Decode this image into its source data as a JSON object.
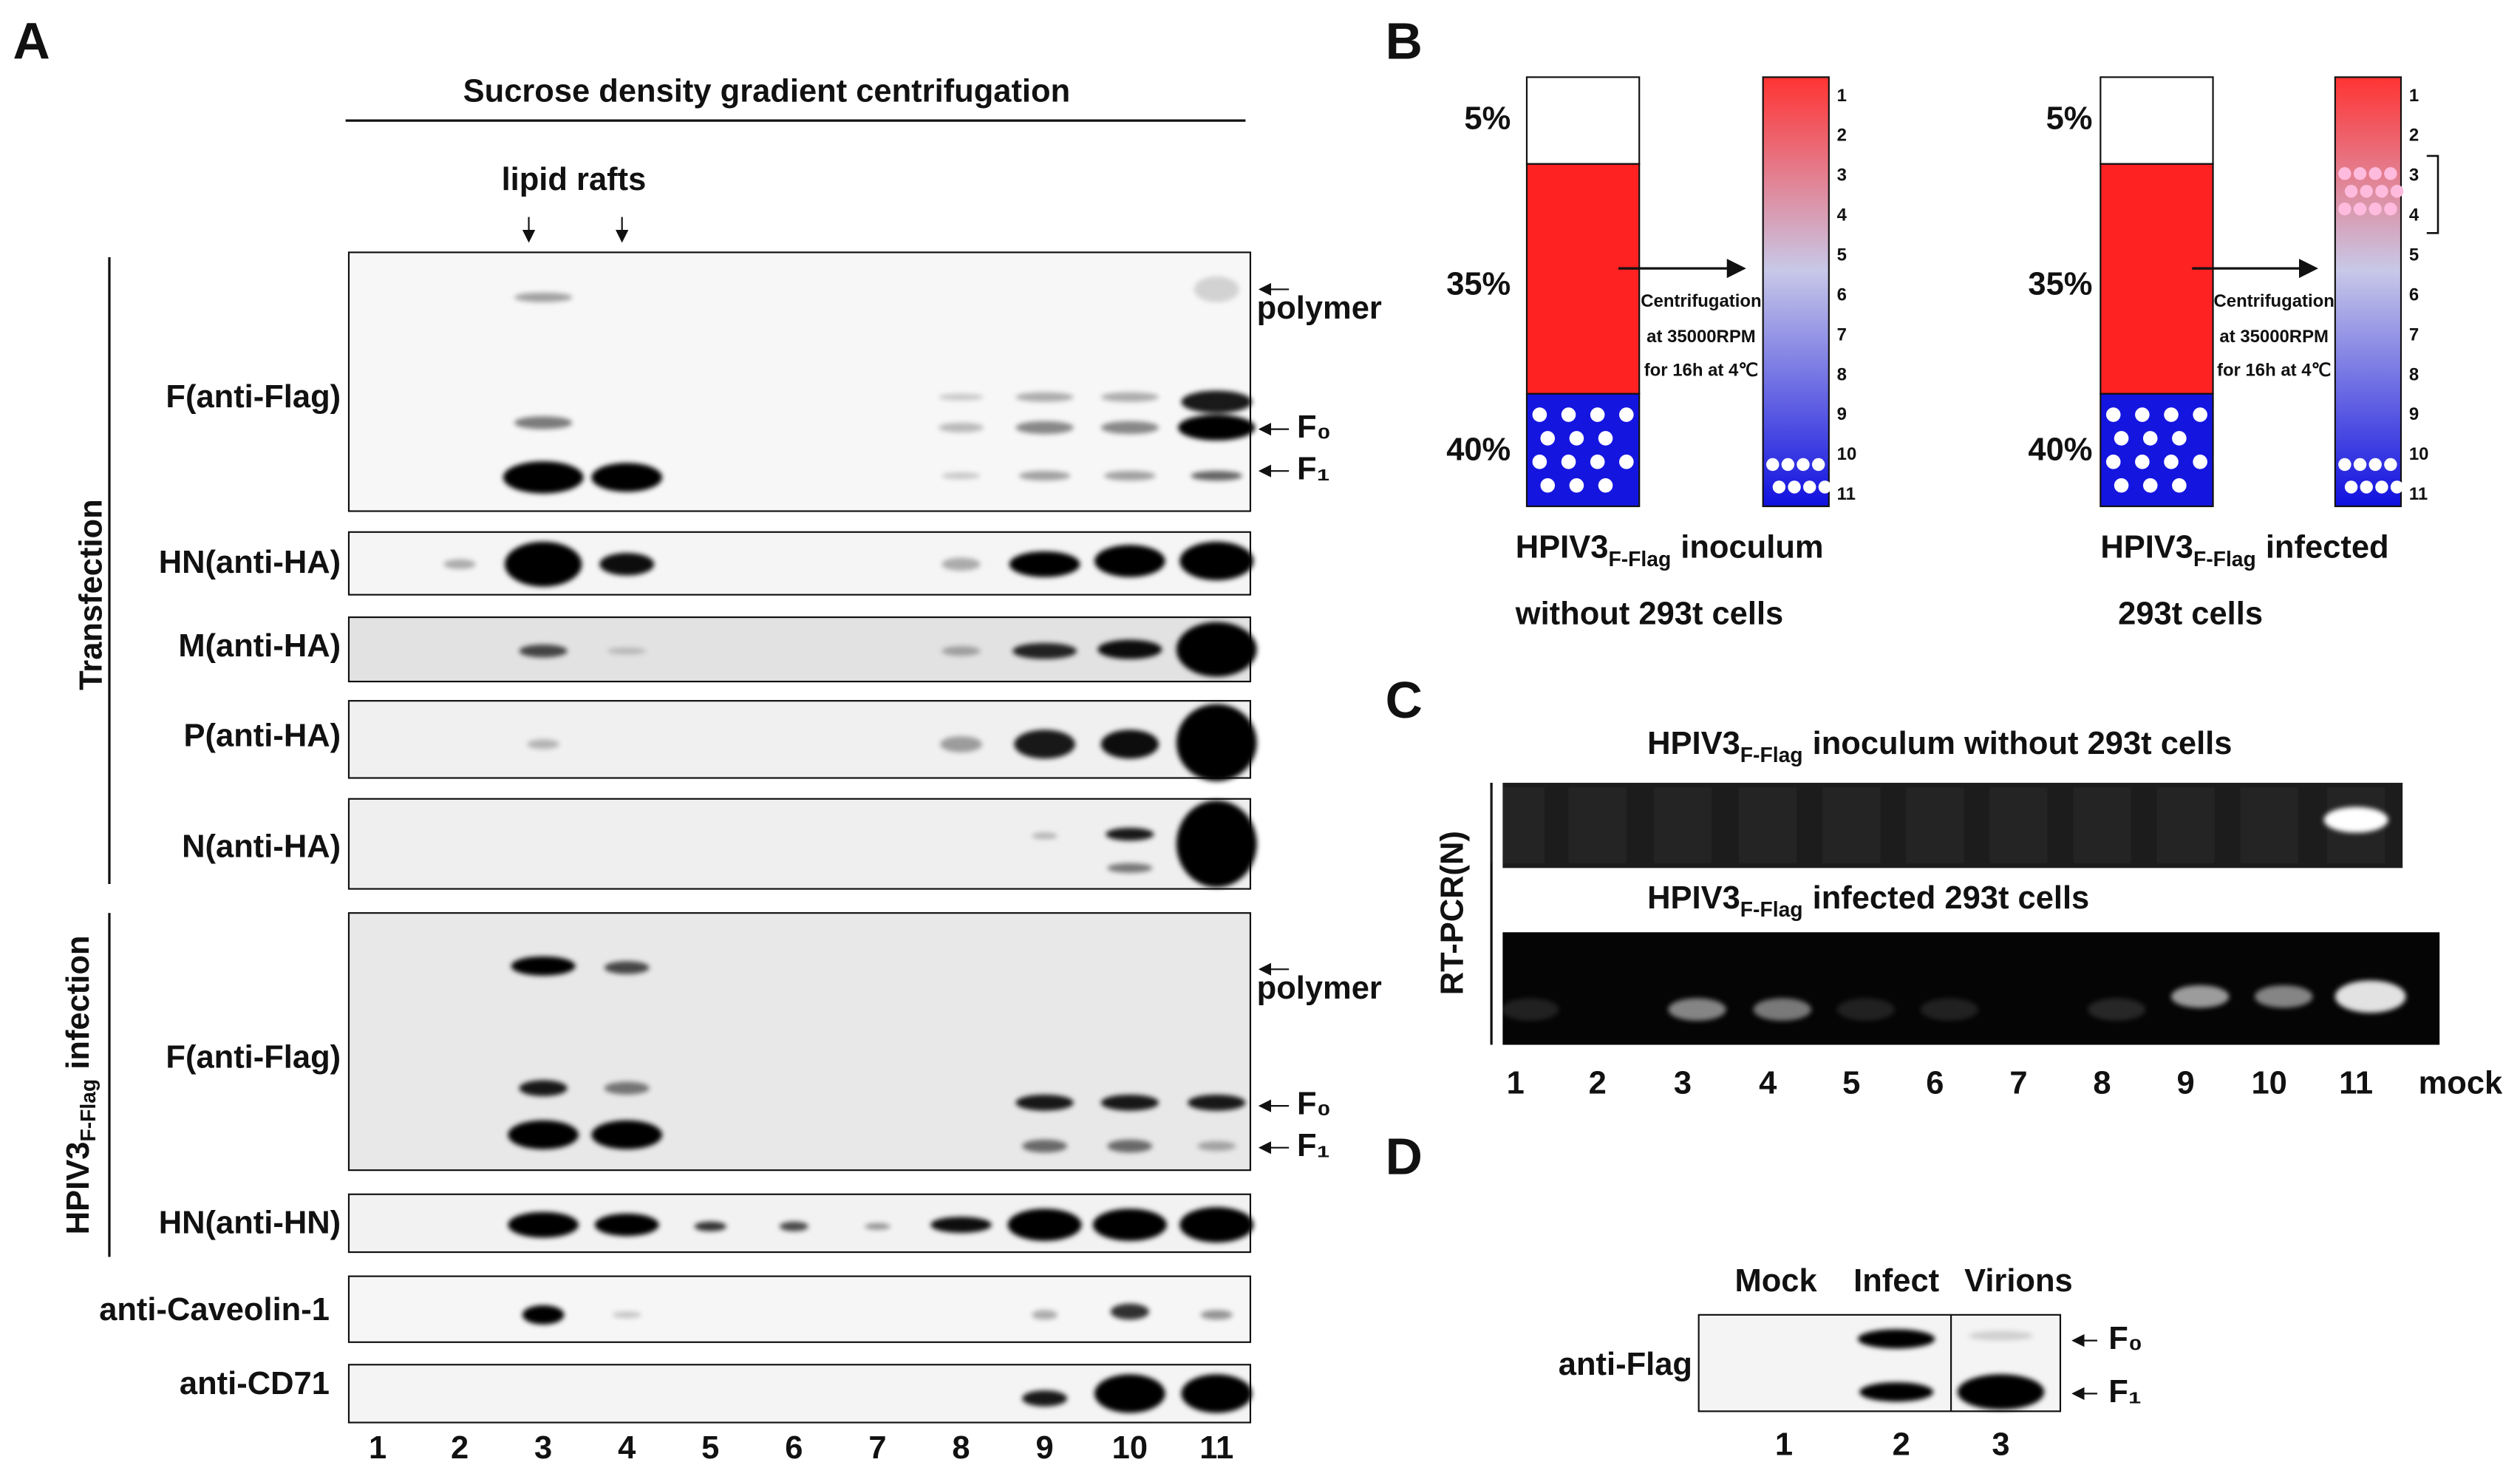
{
  "panel_a": {
    "label": "A",
    "title": "Sucrose density gradient centrifugation",
    "lipid_rafts": "lipid rafts",
    "blots": [
      "F(anti-Flag)",
      "HN(anti-HA)",
      "M(anti-HA)",
      "P(anti-HA)",
      "N(anti-HA)",
      "F(anti-Flag)",
      "HN(anti-HN)",
      "anti-Caveolin-1",
      "anti-CD71"
    ],
    "lanes": [
      "1",
      "2",
      "3",
      "4",
      "5",
      "6",
      "7",
      "8",
      "9",
      "10",
      "11"
    ],
    "transfection": "Transfection",
    "infection": {
      "virus": "HPIV3",
      "subscript": "F-Flag",
      "text": "infection"
    },
    "markers": {
      "polymer": "polymer",
      "f0": "F₀",
      "f1": "F₁"
    }
  },
  "panel_b": {
    "label": "B",
    "percents": [
      "5%",
      "35%",
      "40%"
    ],
    "centrifugation": [
      "Centrifugation",
      "at 35000RPM",
      "for 16h at 4℃"
    ],
    "fractions": [
      "1",
      "2",
      "3",
      "4",
      "5",
      "6",
      "7",
      "8",
      "9",
      "10",
      "11"
    ],
    "virus": "HPIV3",
    "subscript": "F-Flag",
    "left_caption": [
      "inoculum",
      "without 293t cells"
    ],
    "right_caption": [
      "infected",
      "293t cells"
    ]
  },
  "panel_c": {
    "label": "C",
    "virus": "HPIV3",
    "subscript": "F-Flag",
    "gel_titles": [
      "inoculum without 293t cells",
      "infected 293t cells"
    ],
    "axis_label": "RT-PCR(N)",
    "lanes": [
      "1",
      "2",
      "3",
      "4",
      "5",
      "6",
      "7",
      "8",
      "9",
      "10",
      "11",
      "mock"
    ]
  },
  "panel_d": {
    "label": "D",
    "columns": [
      "Mock",
      "Infect",
      "Virions"
    ],
    "blot_label": "anti-Flag",
    "markers": [
      "F₀",
      "F₁"
    ],
    "lanes": [
      "1",
      "2",
      "3"
    ]
  }
}
